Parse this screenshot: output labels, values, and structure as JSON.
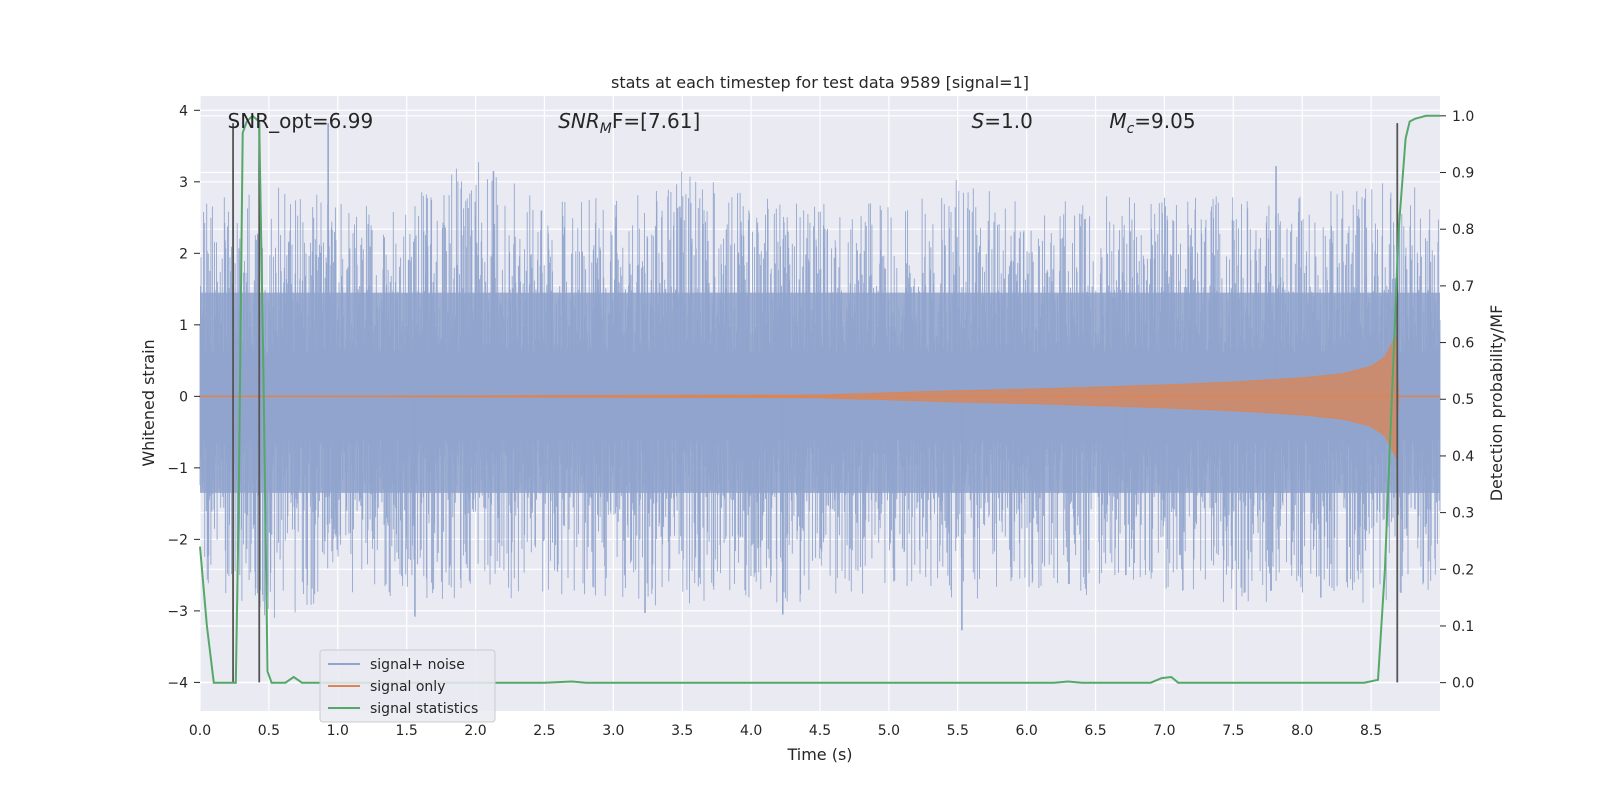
{
  "chart_data": {
    "type": "line",
    "title": "stats at each timestep for test data 9589 [signal=1]",
    "xlabel": "Time (s)",
    "ylabel_left": "Whitened strain",
    "ylabel_right": "Detection probability/MF",
    "xlim": [
      0.0,
      9.0
    ],
    "ylim_left": [
      -4.4,
      4.2
    ],
    "ylim_right": [
      -0.05,
      1.035
    ],
    "x_ticks": [
      "0.0",
      "0.5",
      "1.0",
      "1.5",
      "2.0",
      "2.5",
      "3.0",
      "3.5",
      "4.0",
      "4.5",
      "5.0",
      "5.5",
      "6.0",
      "6.5",
      "7.0",
      "7.5",
      "8.0",
      "8.5"
    ],
    "y_ticks_left": [
      "4",
      "3",
      "2",
      "1",
      "0",
      "−1",
      "−2",
      "−3",
      "−4"
    ],
    "y_ticks_right": [
      "1.0",
      "0.9",
      "0.8",
      "0.7",
      "0.6",
      "0.5",
      "0.4",
      "0.3",
      "0.2",
      "0.1",
      "0.0"
    ],
    "grid": true,
    "legend_position": "lower-left",
    "annotations": [
      {
        "label": "SNR_opt=6.99",
        "x": 0.2,
        "y": 3.85
      },
      {
        "label": "SNR",
        "sub": "M",
        "tail": "F=[7.61]",
        "x": 2.6,
        "y": 3.85
      },
      {
        "label": "S",
        "tail": "=1.0",
        "x": 5.6,
        "y": 3.85
      },
      {
        "label": "M",
        "sub": "c",
        "tail": "=9.05",
        "x": 6.6,
        "y": 3.85
      }
    ],
    "series": [
      {
        "name": "signal+ noise",
        "axis": "left",
        "color": "#8fa3cc",
        "noise_band_upper": [
          1.5,
          2.0,
          1.5,
          1.5,
          2.2,
          1.5,
          1.6,
          2.0,
          1.6,
          1.5,
          1.5,
          1.9,
          1.5,
          1.6,
          1.6,
          1.6,
          1.6,
          1.9,
          1.7
        ],
        "noise_band_lower": [
          -1.4,
          -2.0,
          -1.6,
          -1.6,
          -1.7,
          -1.6,
          -1.8,
          -1.7,
          -1.7,
          -1.7,
          -1.5,
          -1.7,
          -1.6,
          -1.6,
          -1.5,
          -1.8,
          -1.6,
          -1.7,
          -1.5
        ],
        "peaks": [
          {
            "x": 0.93,
            "y": 3.82
          },
          {
            "x": 2.13,
            "y": 3.15
          },
          {
            "x": 5.53,
            "y": -3.27
          },
          {
            "x": 1.56,
            "y": -3.08
          },
          {
            "x": 3.23,
            "y": -3.03
          },
          {
            "x": 4.23,
            "y": -3.05
          },
          {
            "x": 7.81,
            "y": 3.22
          },
          {
            "x": 6.72,
            "y": -2.5
          }
        ]
      },
      {
        "name": "signal only",
        "axis": "left",
        "color": "#dd8452",
        "envelope_x": [
          0.0,
          4.5,
          5.0,
          5.5,
          6.0,
          6.5,
          7.0,
          7.5,
          8.0,
          8.3,
          8.5,
          8.6,
          8.68,
          8.7,
          9.0
        ],
        "envelope_y": [
          0.0,
          0.02,
          0.05,
          0.08,
          0.1,
          0.13,
          0.16,
          0.2,
          0.26,
          0.32,
          0.42,
          0.55,
          0.85,
          0.0,
          0.0
        ]
      },
      {
        "name": "signal statistics",
        "axis": "right",
        "color": "#55a868",
        "x": [
          0.0,
          0.05,
          0.1,
          0.15,
          0.2,
          0.24,
          0.26,
          0.28,
          0.31,
          0.34,
          0.38,
          0.43,
          0.46,
          0.49,
          0.52,
          0.56,
          0.62,
          0.68,
          0.74,
          0.82,
          0.9,
          1.0,
          2.5,
          2.7,
          2.8,
          6.2,
          6.3,
          6.4,
          6.9,
          6.98,
          7.05,
          7.1,
          7.2,
          8.45,
          8.55,
          8.6,
          8.65,
          8.7,
          8.75,
          8.78,
          8.82,
          8.9,
          9.0
        ],
        "y": [
          0.24,
          0.1,
          0.0,
          0.0,
          0.0,
          0.0,
          0.0,
          0.3,
          0.97,
          0.99,
          1.0,
          0.99,
          0.55,
          0.02,
          0.0,
          0.0,
          0.0,
          0.01,
          0.0,
          0.0,
          0.0,
          0.0,
          0.0,
          0.002,
          0.0,
          0.0,
          0.002,
          0.0,
          0.0,
          0.008,
          0.01,
          0.0,
          0.0,
          0.0,
          0.005,
          0.2,
          0.5,
          0.8,
          0.96,
          0.99,
          0.995,
          1.0,
          1.0
        ]
      }
    ],
    "vertical_lines": [
      {
        "x": 0.24,
        "y_from": -4.0,
        "y_to": 3.82
      },
      {
        "x": 0.43,
        "y_from": -4.0,
        "y_to": 3.82
      },
      {
        "x": 8.69,
        "y_from": -4.0,
        "y_to": 3.82
      }
    ]
  }
}
